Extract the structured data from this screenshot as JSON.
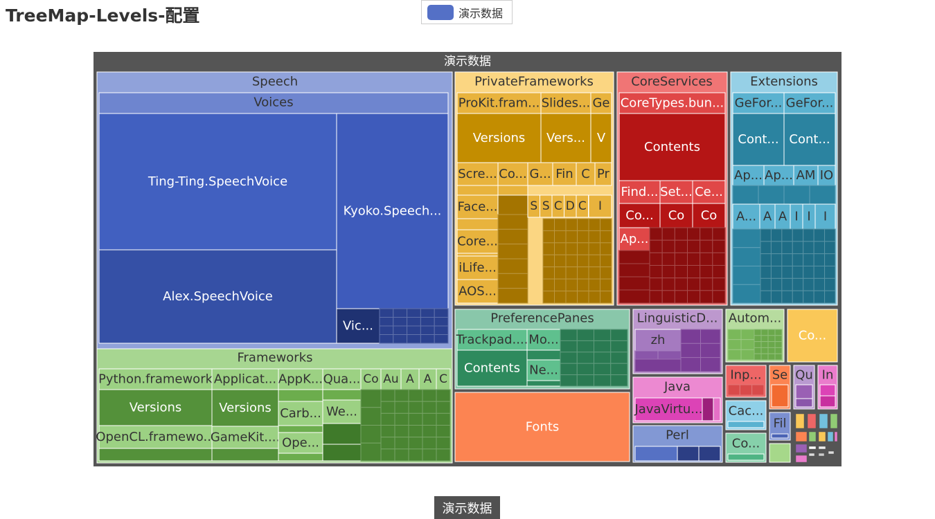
{
  "title": "TreeMap-Levels-配置",
  "legend": {
    "label": "演示数据",
    "color": "#5470c6"
  },
  "breadcrumb": "演示数据",
  "colors": {
    "speech": "#5470c6",
    "frameworks": "#91cc75",
    "private": "#fac858",
    "core": "#ee6666",
    "ext": "#73c0de",
    "pref": "#3ba272",
    "fonts": "#fc8452",
    "ling": "#9a60b4",
    "java": "#ea7ccc"
  },
  "chart_data": {
    "type": "treemap",
    "root": "演示数据",
    "groups": [
      {
        "name": "Speech",
        "sub": "Voices",
        "leaves": [
          "Ting-Ting.SpeechVoice",
          "Alex.SpeechVoice",
          "Kyoko.Speech...",
          "Vic..."
        ]
      },
      {
        "name": "Frameworks",
        "leaves": [
          "Python.framework",
          "Versions",
          "Applicat...",
          "Versions",
          "AppK...",
          "Qua...",
          "Co",
          "Au",
          "A",
          "A",
          "C",
          "OpenCL.framewo...",
          "GameKit....",
          "Carb...",
          "We...",
          "Ope..."
        ]
      },
      {
        "name": "PrivateFrameworks",
        "leaves": [
          "ProKit.fram...",
          "Slides...",
          "Ge",
          "Versions",
          "Vers...",
          "V",
          "Scre...",
          "Co...",
          "G...",
          "Fin",
          "C",
          "Pr",
          "Face...",
          "S",
          "S",
          "C",
          "D",
          "C",
          "I",
          "Core...",
          "iLife...",
          "AOS..."
        ]
      },
      {
        "name": "CoreServices",
        "leaves": [
          "CoreTypes.bun...",
          "Contents",
          "Find...",
          "Set...",
          "Ce...",
          "Co...",
          "Co",
          "Co",
          "Ap..."
        ]
      },
      {
        "name": "Extensions",
        "leaves": [
          "GeFor...",
          "GeFor...",
          "Cont...",
          "Cont...",
          "Ap...",
          "Ap...",
          "AM",
          "IO",
          "A...",
          "A",
          "A",
          "I",
          "I",
          "I"
        ]
      },
      {
        "name": "PreferencePanes",
        "leaves": [
          "Trackpad....",
          "Mo...",
          "Contents",
          "Ne..."
        ]
      },
      {
        "name": "Fonts"
      },
      {
        "name": "LinguisticD...",
        "leaves": [
          "zh"
        ]
      },
      {
        "name": "Java",
        "leaves": [
          "JavaVirtu..."
        ]
      },
      {
        "name": "Perl"
      },
      {
        "name": "Autom..."
      },
      {
        "name": "Co..."
      },
      {
        "name": "Inp..."
      },
      {
        "name": "Se"
      },
      {
        "name": "Qu"
      },
      {
        "name": "In"
      },
      {
        "name": "Cac..."
      },
      {
        "name": "Fil"
      },
      {
        "name": "Co..."
      }
    ]
  }
}
